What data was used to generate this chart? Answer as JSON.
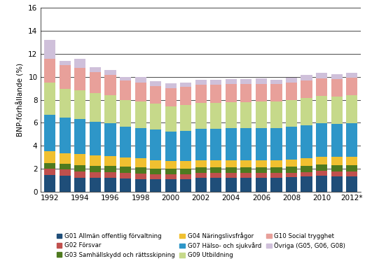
{
  "years": [
    1992,
    1993,
    1994,
    1995,
    1996,
    1997,
    1998,
    1999,
    2000,
    2001,
    2002,
    2003,
    2004,
    2005,
    2006,
    2007,
    2008,
    2009,
    2010,
    2011,
    2012
  ],
  "series_order": [
    "G01 Allmän offentlig förvaltning",
    "G02 Försvar",
    "G03 Samhällskydd och rättsskipning",
    "G04 Näringslivsfrågor",
    "G07 Hälso- och sjukvård",
    "G09 Utbildning",
    "G10 Social trygghet",
    "Övriga (G05, G06, G08)"
  ],
  "series": {
    "G01 Allmän offentlig förvaltning": [
      1.45,
      1.35,
      1.2,
      1.2,
      1.2,
      1.15,
      1.1,
      1.1,
      1.1,
      1.1,
      1.2,
      1.2,
      1.2,
      1.2,
      1.2,
      1.2,
      1.25,
      1.3,
      1.35,
      1.3,
      1.3
    ],
    "G02 Försvar": [
      0.55,
      0.55,
      0.55,
      0.5,
      0.5,
      0.45,
      0.45,
      0.4,
      0.4,
      0.4,
      0.4,
      0.4,
      0.4,
      0.4,
      0.4,
      0.4,
      0.4,
      0.4,
      0.45,
      0.45,
      0.45
    ],
    "G03 Samhällskydd och rättsskipning": [
      0.5,
      0.5,
      0.55,
      0.55,
      0.55,
      0.55,
      0.55,
      0.5,
      0.5,
      0.5,
      0.5,
      0.5,
      0.5,
      0.5,
      0.5,
      0.5,
      0.5,
      0.55,
      0.55,
      0.55,
      0.55
    ],
    "G04 Näringslivsfrågor": [
      1.0,
      0.95,
      1.0,
      0.9,
      0.85,
      0.8,
      0.8,
      0.75,
      0.65,
      0.65,
      0.65,
      0.6,
      0.6,
      0.6,
      0.6,
      0.6,
      0.65,
      0.65,
      0.7,
      0.7,
      0.7
    ],
    "G07 Hälso- och sjukvård": [
      3.2,
      3.1,
      3.0,
      2.9,
      2.85,
      2.7,
      2.65,
      2.65,
      2.6,
      2.65,
      2.7,
      2.75,
      2.8,
      2.8,
      2.85,
      2.85,
      2.85,
      2.85,
      2.9,
      2.9,
      2.95
    ],
    "G09 Utbildning": [
      2.8,
      2.5,
      2.5,
      2.5,
      2.45,
      2.3,
      2.3,
      2.25,
      2.2,
      2.25,
      2.3,
      2.3,
      2.3,
      2.3,
      2.3,
      2.3,
      2.35,
      2.4,
      2.4,
      2.4,
      2.45
    ],
    "G10 Social trygghet": [
      2.1,
      2.1,
      2.0,
      1.85,
      1.75,
      1.7,
      1.65,
      1.55,
      1.55,
      1.55,
      1.55,
      1.55,
      1.55,
      1.55,
      1.55,
      1.5,
      1.5,
      1.5,
      1.5,
      1.5,
      1.5
    ],
    "Övriga (G05, G06, G08)": [
      1.6,
      0.35,
      0.75,
      0.45,
      0.45,
      0.35,
      0.5,
      0.4,
      0.45,
      0.4,
      0.45,
      0.45,
      0.45,
      0.45,
      0.45,
      0.4,
      0.45,
      0.5,
      0.5,
      0.45,
      0.45
    ]
  },
  "colors": {
    "G01 Allmän offentlig förvaltning": "#1F4E79",
    "G02 Försvar": "#C0504D",
    "G03 Samhällskydd och rättsskipning": "#4E7A1F",
    "G04 Näringslivsfrågor": "#F0C030",
    "G07 Hälso- och sjukvård": "#2E96C8",
    "G09 Utbildning": "#C6D98A",
    "G10 Social trygghet": "#E8A09A",
    "Övriga (G05, G06, G08)": "#CFC0DA"
  },
  "legend_order": [
    "G01 Allmän offentlig förvaltning",
    "G02 Försvar",
    "G03 Samhällskydd och rättsskipning",
    "G04 Näringslivsfrågor",
    "G07 Hälso- och sjukvård",
    "G09 Utbildning",
    "G10 Social trygghet",
    "Övriga (G05, G06, G08)"
  ],
  "ylabel": "BNP-förhållande (%)",
  "ylim": [
    0,
    16
  ],
  "yticks": [
    0,
    2,
    4,
    6,
    8,
    10,
    12,
    14,
    16
  ],
  "background_color": "#FFFFFF",
  "bar_width": 0.75
}
